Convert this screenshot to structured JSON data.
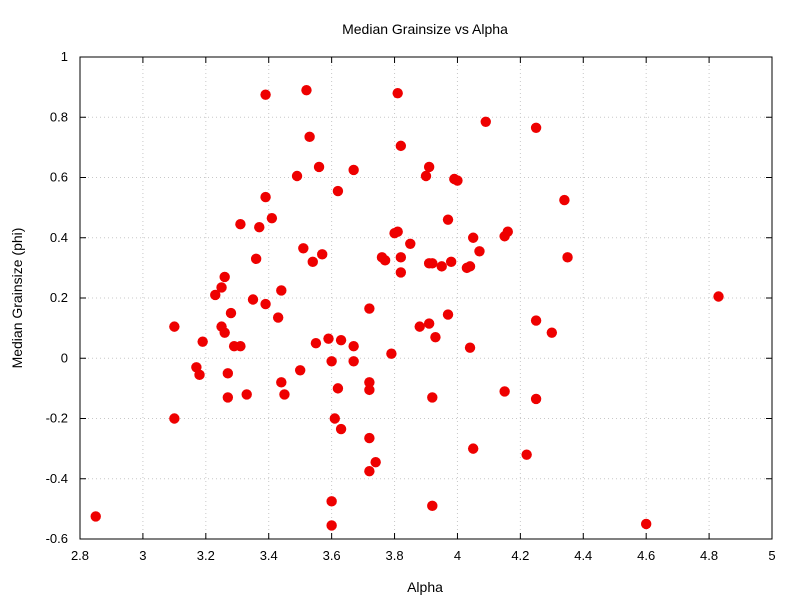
{
  "chart_data": {
    "type": "scatter",
    "title": "Median Grainsize vs Alpha",
    "xlabel": "Alpha",
    "ylabel": "Median Grainsize (phi)",
    "xlim": [
      2.8,
      5
    ],
    "ylim": [
      -0.6,
      1
    ],
    "xticks": [
      2.8,
      3,
      3.2,
      3.4,
      3.6,
      3.8,
      4,
      4.2,
      4.4,
      4.6,
      4.8,
      5
    ],
    "xtick_labels": [
      "2.8",
      "3",
      "3.2",
      "3.4",
      "3.6",
      "3.8",
      "4",
      "4.2",
      "4.4",
      "4.6",
      "4.8",
      "5"
    ],
    "yticks": [
      -0.6,
      -0.4,
      -0.2,
      0,
      0.2,
      0.4,
      0.6,
      0.8,
      1
    ],
    "ytick_labels": [
      "-0.6",
      "-0.4",
      "-0.2",
      "0",
      "0.2",
      "0.4",
      "0.6",
      "0.8",
      "1"
    ],
    "grid": true,
    "marker_color": "#ee0000",
    "points": [
      [
        2.85,
        -0.525
      ],
      [
        3.1,
        0.105
      ],
      [
        3.1,
        -0.2
      ],
      [
        3.17,
        -0.03
      ],
      [
        3.18,
        -0.055
      ],
      [
        3.19,
        0.055
      ],
      [
        3.23,
        0.21
      ],
      [
        3.25,
        0.235
      ],
      [
        3.25,
        0.105
      ],
      [
        3.26,
        0.085
      ],
      [
        3.26,
        0.27
      ],
      [
        3.27,
        -0.05
      ],
      [
        3.27,
        -0.13
      ],
      [
        3.28,
        0.15
      ],
      [
        3.29,
        0.04
      ],
      [
        3.31,
        0.04
      ],
      [
        3.31,
        0.445
      ],
      [
        3.33,
        -0.12
      ],
      [
        3.35,
        0.195
      ],
      [
        3.36,
        0.33
      ],
      [
        3.37,
        0.435
      ],
      [
        3.39,
        0.535
      ],
      [
        3.39,
        0.875
      ],
      [
        3.39,
        0.18
      ],
      [
        3.41,
        0.465
      ],
      [
        3.43,
        0.135
      ],
      [
        3.44,
        -0.08
      ],
      [
        3.44,
        0.225
      ],
      [
        3.45,
        -0.12
      ],
      [
        3.49,
        0.605
      ],
      [
        3.5,
        -0.04
      ],
      [
        3.51,
        0.365
      ],
      [
        3.52,
        0.89
      ],
      [
        3.53,
        0.735
      ],
      [
        3.54,
        0.32
      ],
      [
        3.55,
        0.05
      ],
      [
        3.56,
        0.635
      ],
      [
        3.57,
        0.345
      ],
      [
        3.59,
        0.065
      ],
      [
        3.6,
        -0.01
      ],
      [
        3.6,
        -0.475
      ],
      [
        3.6,
        -0.555
      ],
      [
        3.61,
        -0.2
      ],
      [
        3.62,
        -0.1
      ],
      [
        3.62,
        0.555
      ],
      [
        3.63,
        0.06
      ],
      [
        3.63,
        -0.235
      ],
      [
        3.67,
        0.625
      ],
      [
        3.67,
        0.04
      ],
      [
        3.67,
        -0.01
      ],
      [
        3.72,
        0.165
      ],
      [
        3.72,
        -0.08
      ],
      [
        3.72,
        -0.105
      ],
      [
        3.72,
        -0.265
      ],
      [
        3.72,
        -0.375
      ],
      [
        3.74,
        -0.345
      ],
      [
        3.76,
        0.335
      ],
      [
        3.77,
        0.325
      ],
      [
        3.79,
        0.015
      ],
      [
        3.8,
        0.415
      ],
      [
        3.81,
        0.42
      ],
      [
        3.81,
        0.88
      ],
      [
        3.82,
        0.705
      ],
      [
        3.82,
        0.335
      ],
      [
        3.82,
        0.285
      ],
      [
        3.85,
        0.38
      ],
      [
        3.88,
        0.105
      ],
      [
        3.9,
        0.605
      ],
      [
        3.91,
        0.315
      ],
      [
        3.91,
        0.635
      ],
      [
        3.91,
        0.115
      ],
      [
        3.92,
        0.315
      ],
      [
        3.92,
        -0.49
      ],
      [
        3.92,
        -0.13
      ],
      [
        3.93,
        0.07
      ],
      [
        3.95,
        0.305
      ],
      [
        3.97,
        0.46
      ],
      [
        3.97,
        0.145
      ],
      [
        3.98,
        0.32
      ],
      [
        3.99,
        0.595
      ],
      [
        4.0,
        0.59
      ],
      [
        4.03,
        0.3
      ],
      [
        4.04,
        0.305
      ],
      [
        4.04,
        0.035
      ],
      [
        4.05,
        0.4
      ],
      [
        4.05,
        -0.3
      ],
      [
        4.07,
        0.355
      ],
      [
        4.09,
        0.785
      ],
      [
        4.15,
        0.405
      ],
      [
        4.15,
        -0.11
      ],
      [
        4.16,
        0.42
      ],
      [
        4.22,
        -0.32
      ],
      [
        4.25,
        0.125
      ],
      [
        4.25,
        0.765
      ],
      [
        4.25,
        -0.135
      ],
      [
        4.3,
        0.085
      ],
      [
        4.34,
        0.525
      ],
      [
        4.35,
        0.335
      ],
      [
        4.6,
        -0.55
      ],
      [
        4.83,
        0.205
      ]
    ]
  }
}
